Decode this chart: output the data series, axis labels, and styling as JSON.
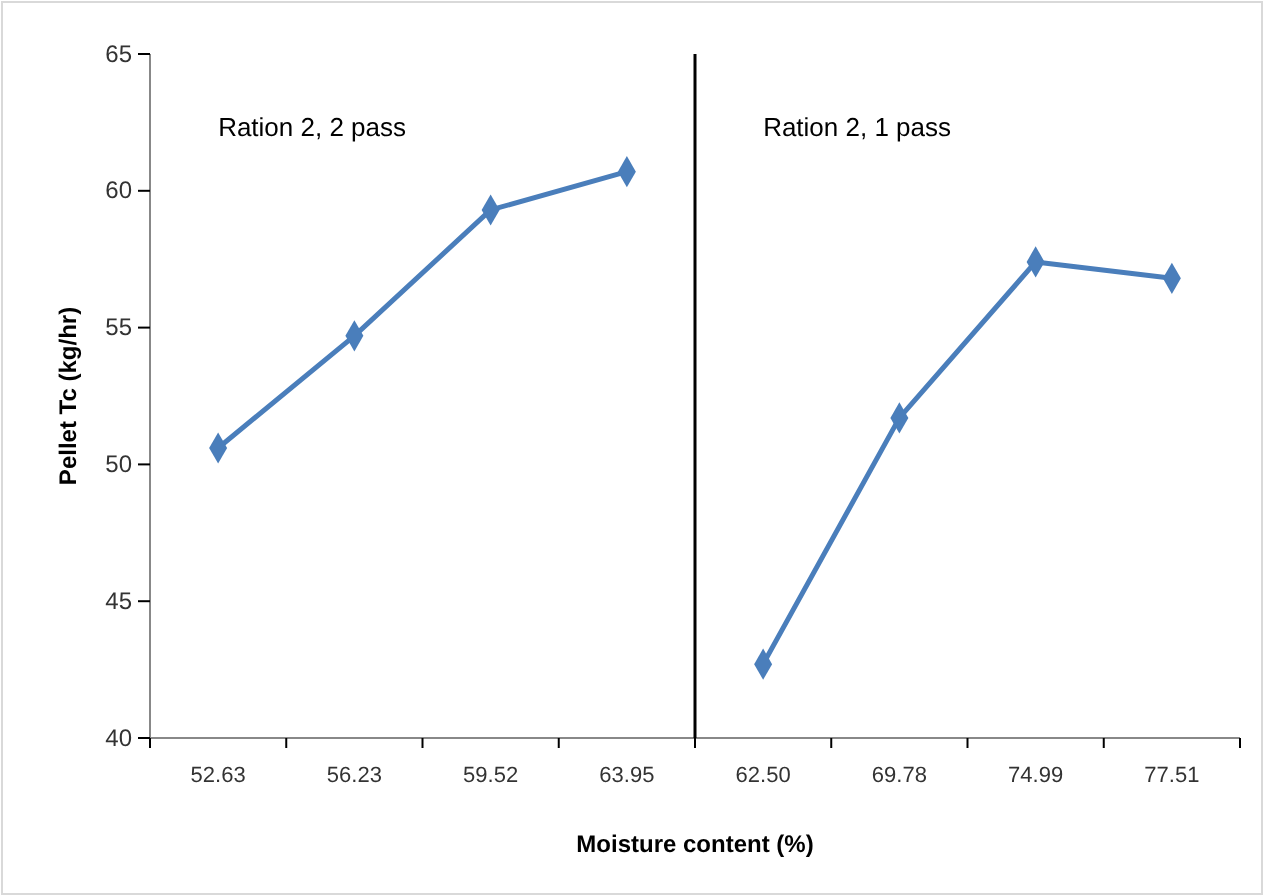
{
  "chart_data": {
    "type": "line",
    "xlabel": "Moisture content (%)",
    "ylabel": "Pellet Tc (kg/hr)",
    "categories": [
      "52.63",
      "56.23",
      "59.52",
      "63.95",
      "62.50",
      "69.78",
      "74.99",
      "77.51"
    ],
    "series": [
      {
        "color": "#4a7ebb",
        "values": [
          50.6,
          54.7,
          59.3,
          60.7,
          null,
          null,
          null,
          null
        ]
      },
      {
        "color": "#4a7ebb",
        "values": [
          null,
          null,
          null,
          null,
          42.7,
          51.7,
          57.4,
          56.8
        ]
      }
    ],
    "annotations": [
      "Ration 2, 2 pass",
      "Ration 2, 1 pass"
    ],
    "ylim": [
      40,
      65
    ],
    "yticks": [
      40,
      45,
      50,
      55,
      60,
      65
    ],
    "grid": false,
    "marker": "diamond",
    "line_style": "solid"
  }
}
